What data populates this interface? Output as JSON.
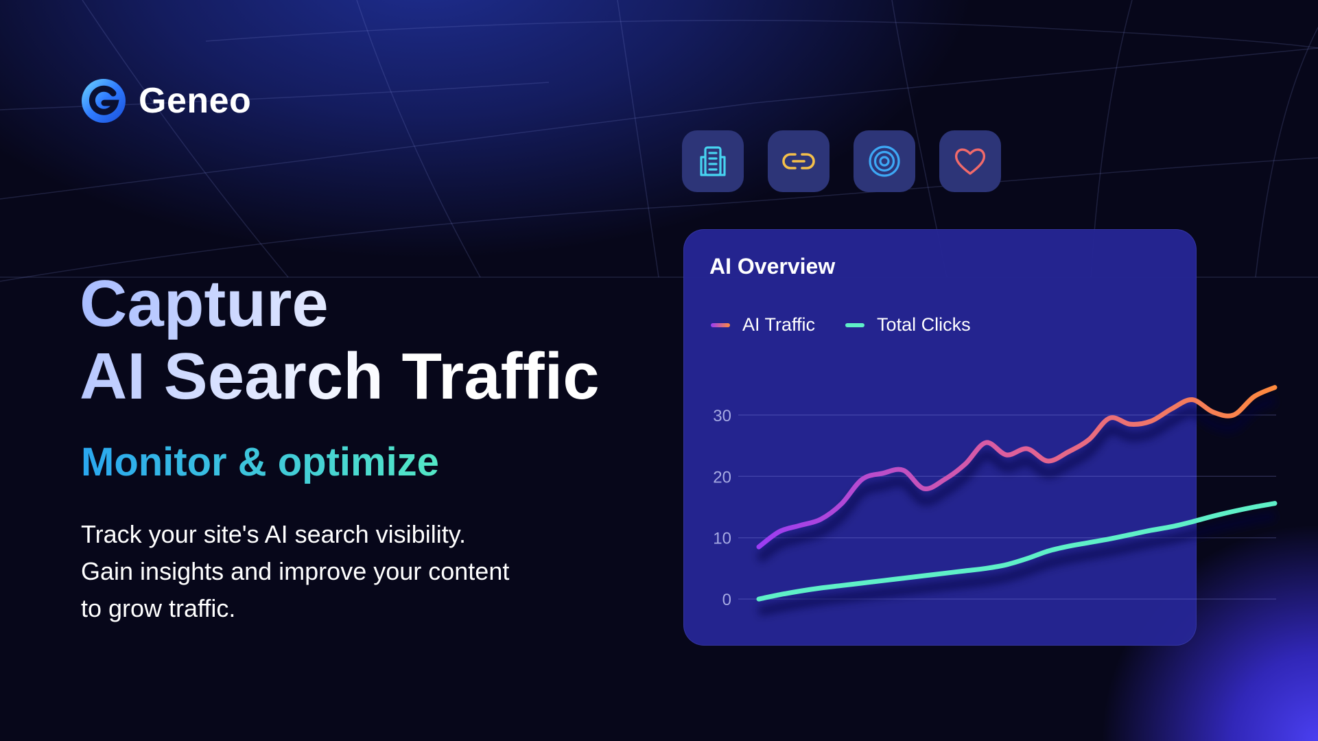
{
  "brand": {
    "name": "Geneo",
    "icon": "geneo-logo-icon",
    "color": "#2f7bff"
  },
  "hero": {
    "headline_line1": "Capture",
    "headline_line2": "AI Search Traffic",
    "subheadline": "Monitor & optimize",
    "description_lines": [
      "Track your site's AI search visibility.",
      "Gain insights and improve your content",
      "to grow traffic."
    ]
  },
  "feature_icons": [
    {
      "name": "building-icon",
      "color": "#47d3f0"
    },
    {
      "name": "link-icon",
      "color": "#f5c04a"
    },
    {
      "name": "target-icon",
      "color": "#3da8f5"
    },
    {
      "name": "heart-icon",
      "color": "#f26a6a"
    }
  ],
  "chart_data": {
    "type": "line",
    "title": "AI Overview",
    "legend_position": "top-left",
    "grid": true,
    "y_ticks": [
      0,
      10,
      20,
      30
    ],
    "ylim": [
      -2,
      32
    ],
    "x": [
      0,
      1,
      2,
      3,
      4,
      5,
      6,
      7,
      8,
      9,
      10,
      11,
      12,
      13,
      14,
      15,
      16,
      17,
      18,
      19,
      20,
      21,
      22,
      23,
      24,
      25
    ],
    "series": [
      {
        "name": "AI Traffic",
        "color_start": "#9a3cf5",
        "color_end": "#ff8a3d",
        "values": [
          8.5,
          11,
          12,
          13,
          15.5,
          19.5,
          20.5,
          21,
          18,
          19.5,
          22,
          25.5,
          23.5,
          24.5,
          22.5,
          24,
          26,
          29.5,
          28.5,
          29,
          31,
          32.5,
          30.5,
          30,
          33,
          34.5
        ]
      },
      {
        "name": "Total Clicks",
        "color": "#5ff0c8",
        "values": [
          0,
          0.7,
          1.3,
          1.8,
          2.2,
          2.6,
          3.0,
          3.4,
          3.8,
          4.2,
          4.6,
          5.0,
          5.6,
          6.6,
          7.8,
          8.6,
          9.2,
          9.8,
          10.5,
          11.2,
          11.8,
          12.6,
          13.5,
          14.3,
          15.0,
          15.6
        ]
      }
    ]
  }
}
